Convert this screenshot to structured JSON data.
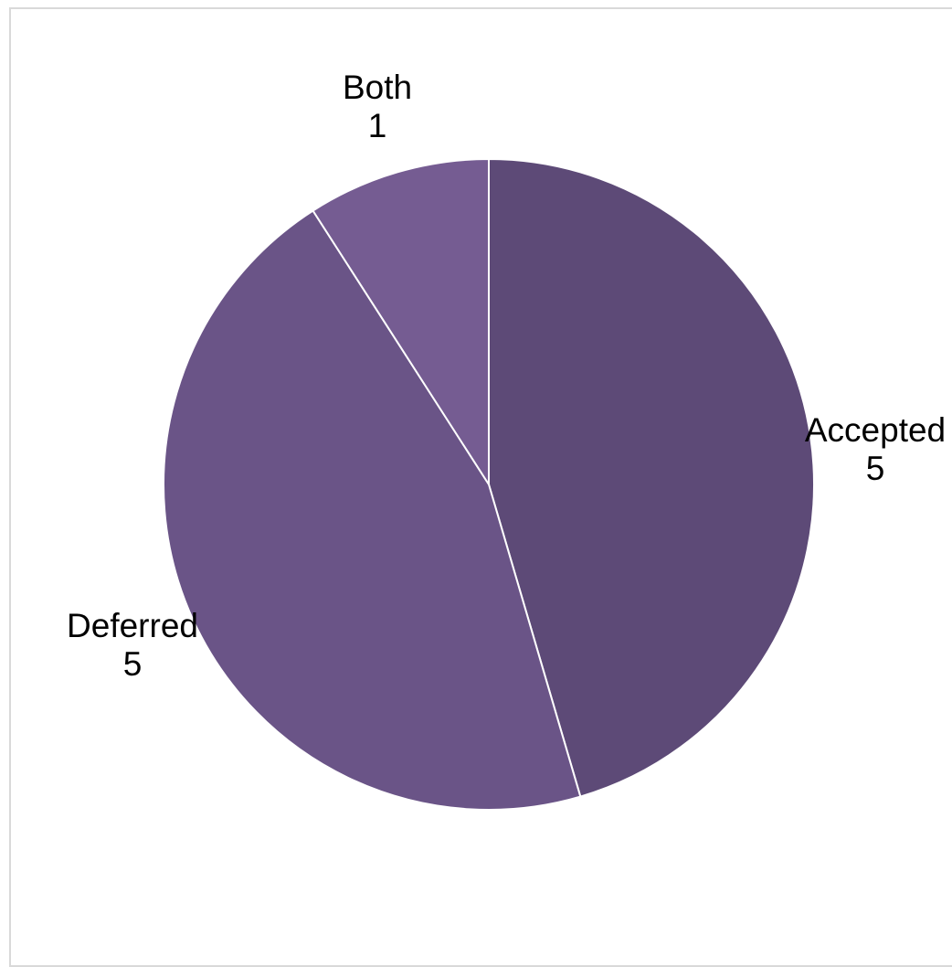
{
  "chart_data": {
    "type": "pie",
    "title": "",
    "slices": [
      {
        "label": "Accepted",
        "value": 5,
        "color": "#5d4a77"
      },
      {
        "label": "Deferred",
        "value": 5,
        "color": "#6a5487"
      },
      {
        "label": "Both",
        "value": 1,
        "color": "#755c92"
      }
    ],
    "legend": "none",
    "start_angle_deg": 0,
    "direction": "clockwise"
  }
}
